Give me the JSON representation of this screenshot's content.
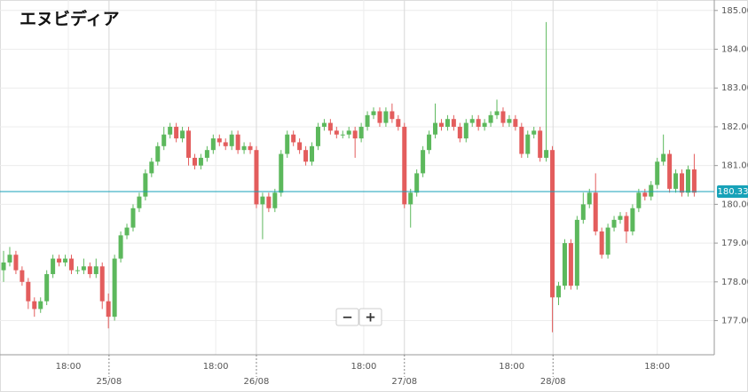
{
  "chart_data": {
    "type": "candlestick",
    "title": "エヌビディア",
    "up_color": "#5cb85c",
    "down_color": "#e35d5d",
    "grid": true,
    "xlim": [
      -0.58,
      115.25
    ],
    "ylim": [
      176.12,
      185.27
    ],
    "yticks": [
      {
        "value": 177,
        "label": "177.00"
      },
      {
        "value": 178,
        "label": "178.00"
      },
      {
        "value": 179,
        "label": "179.00"
      },
      {
        "value": 180,
        "label": "180.00"
      },
      {
        "value": 181,
        "label": "181.00"
      },
      {
        "value": 182,
        "label": "182.00"
      },
      {
        "value": 183,
        "label": "183.00"
      },
      {
        "value": 184,
        "label": "184.00"
      },
      {
        "value": 185,
        "label": "185.00"
      }
    ],
    "xticks": [
      {
        "value": 10.5,
        "label": "18:00"
      },
      {
        "value": 34.4,
        "label": "18:00"
      },
      {
        "value": 58.4,
        "label": "18:00"
      },
      {
        "value": 82.4,
        "label": "18:00"
      },
      {
        "value": 106.0,
        "label": "18:00"
      }
    ],
    "day_ticks": [
      {
        "value": 17.1,
        "label": "25/08"
      },
      {
        "value": 41.0,
        "label": "26/08"
      },
      {
        "value": 65.0,
        "label": "27/08"
      },
      {
        "value": 89.1,
        "label": "28/08"
      }
    ],
    "last_price": {
      "value": 180.33,
      "label": "180.33",
      "color": "#17a2b8"
    },
    "open": [
      178.3,
      178.5,
      178.7,
      178.3,
      178.0,
      177.5,
      177.3,
      177.5,
      178.2,
      178.6,
      178.5,
      178.6,
      178.3,
      178.3,
      178.4,
      178.2,
      178.4,
      177.5,
      177.1,
      178.6,
      179.2,
      179.4,
      179.9,
      180.2,
      180.8,
      181.1,
      181.5,
      181.8,
      182.0,
      181.7,
      181.9,
      181.2,
      181.0,
      181.2,
      181.4,
      181.7,
      181.6,
      181.5,
      181.8,
      181.4,
      181.5,
      181.4,
      180.0,
      180.2,
      179.9,
      180.3,
      181.3,
      181.8,
      181.6,
      181.4,
      181.1,
      181.5,
      182.0,
      182.1,
      181.9,
      181.8,
      181.8,
      181.9,
      181.7,
      182.0,
      182.3,
      182.4,
      182.1,
      182.4,
      182.2,
      182.0,
      180.0,
      180.3,
      180.8,
      181.4,
      181.8,
      182.1,
      182.0,
      182.2,
      182.0,
      181.7,
      182.1,
      182.2,
      182.0,
      182.1,
      182.3,
      182.4,
      182.1,
      182.2,
      182.0,
      181.3,
      181.8,
      181.9,
      181.2,
      181.4,
      177.6,
      177.9,
      179.0,
      177.9,
      179.6,
      180.0,
      180.3,
      179.3,
      178.7,
      179.4,
      179.6,
      179.7,
      179.3,
      179.9,
      180.3,
      180.2,
      180.5,
      181.1,
      181.3,
      180.4,
      180.8,
      180.3,
      180.9
    ],
    "high": [
      178.8,
      178.9,
      178.8,
      178.4,
      178.1,
      177.6,
      177.6,
      178.3,
      178.7,
      178.7,
      178.7,
      178.7,
      178.4,
      178.6,
      178.5,
      178.6,
      178.5,
      177.7,
      178.7,
      179.3,
      179.5,
      180.0,
      180.3,
      180.9,
      181.2,
      181.6,
      182.0,
      182.1,
      182.1,
      182.0,
      182.0,
      181.3,
      181.3,
      181.5,
      181.8,
      181.8,
      181.7,
      181.9,
      181.9,
      181.6,
      181.6,
      181.5,
      180.3,
      180.3,
      180.4,
      181.4,
      181.9,
      181.9,
      181.7,
      181.5,
      181.6,
      182.1,
      182.2,
      182.2,
      182.0,
      181.9,
      182.0,
      182.0,
      182.1,
      182.4,
      182.5,
      182.5,
      182.5,
      182.6,
      182.3,
      182.1,
      180.4,
      180.9,
      181.5,
      181.9,
      182.6,
      182.2,
      182.3,
      182.3,
      182.1,
      182.2,
      182.3,
      182.3,
      182.2,
      182.4,
      182.7,
      182.5,
      182.3,
      182.3,
      182.1,
      181.9,
      182.0,
      182.0,
      184.7,
      181.5,
      178.0,
      179.1,
      179.1,
      179.7,
      180.3,
      180.4,
      180.8,
      179.4,
      179.5,
      179.7,
      179.8,
      179.8,
      180.0,
      180.4,
      180.4,
      180.6,
      181.2,
      181.8,
      181.4,
      180.9,
      180.9,
      181.0,
      181.3
    ],
    "low": [
      178.0,
      178.4,
      178.2,
      177.9,
      177.3,
      177.1,
      177.2,
      177.4,
      178.1,
      178.4,
      178.4,
      178.2,
      178.2,
      178.2,
      178.1,
      178.1,
      177.3,
      176.8,
      177.0,
      178.5,
      179.1,
      179.3,
      179.8,
      180.1,
      180.7,
      181.0,
      181.4,
      181.7,
      181.6,
      181.6,
      181.0,
      180.9,
      180.9,
      181.1,
      181.3,
      181.5,
      181.4,
      181.4,
      181.3,
      181.3,
      181.3,
      179.9,
      179.1,
      179.8,
      179.8,
      180.2,
      181.2,
      181.5,
      181.3,
      181.0,
      181.0,
      181.4,
      181.9,
      181.8,
      181.7,
      181.7,
      181.7,
      181.2,
      181.6,
      181.9,
      182.2,
      182.0,
      182.0,
      182.1,
      181.9,
      179.9,
      179.4,
      180.2,
      180.7,
      181.3,
      181.7,
      181.9,
      181.9,
      181.9,
      181.6,
      181.6,
      182.0,
      181.9,
      181.9,
      182.0,
      182.2,
      182.0,
      182.0,
      181.9,
      181.2,
      181.2,
      181.7,
      181.1,
      181.1,
      176.7,
      177.4,
      177.8,
      177.8,
      177.8,
      179.5,
      179.9,
      179.2,
      178.6,
      178.6,
      179.3,
      179.5,
      179.0,
      179.2,
      179.8,
      180.1,
      180.1,
      180.4,
      181.0,
      180.3,
      180.3,
      180.2,
      180.2,
      180.2
    ],
    "close": [
      178.5,
      178.7,
      178.3,
      178.0,
      177.5,
      177.3,
      177.5,
      178.2,
      178.6,
      178.5,
      178.6,
      178.3,
      178.3,
      178.4,
      178.2,
      178.4,
      177.5,
      177.1,
      178.6,
      179.2,
      179.4,
      179.9,
      180.2,
      180.8,
      181.1,
      181.5,
      181.8,
      182.0,
      181.7,
      181.9,
      181.2,
      181.0,
      181.2,
      181.4,
      181.7,
      181.6,
      181.5,
      181.8,
      181.4,
      181.5,
      181.4,
      180.0,
      180.2,
      179.9,
      180.3,
      181.3,
      181.8,
      181.6,
      181.4,
      181.1,
      181.5,
      182.0,
      182.1,
      181.9,
      181.8,
      181.8,
      181.9,
      181.7,
      182.0,
      182.3,
      182.4,
      182.1,
      182.4,
      182.2,
      182.0,
      180.0,
      180.3,
      180.8,
      181.4,
      181.8,
      182.1,
      182.0,
      182.2,
      182.0,
      181.7,
      182.1,
      182.2,
      182.0,
      182.1,
      182.3,
      182.4,
      182.1,
      182.2,
      182.0,
      181.3,
      181.8,
      181.9,
      181.2,
      181.4,
      177.6,
      177.9,
      179.0,
      177.9,
      179.6,
      180.0,
      180.3,
      179.3,
      178.7,
      179.4,
      179.6,
      179.7,
      179.3,
      179.9,
      180.3,
      180.2,
      180.5,
      181.1,
      181.3,
      180.4,
      180.8,
      180.3,
      180.9,
      180.3
    ]
  },
  "controls": {
    "zoom_out": "−",
    "zoom_in": "+"
  }
}
